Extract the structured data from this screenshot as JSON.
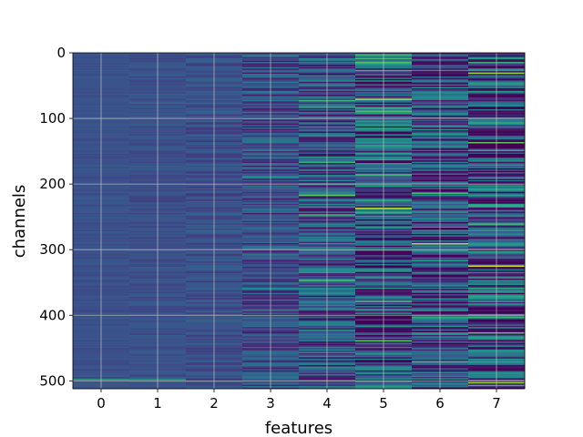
{
  "chart_data": {
    "type": "heatmap",
    "title": "",
    "xlabel": "features",
    "ylabel": "channels",
    "x_categories": [
      0,
      1,
      2,
      3,
      4,
      5,
      6,
      7
    ],
    "x_ticks": [
      "0",
      "1",
      "2",
      "3",
      "4",
      "5",
      "6",
      "7"
    ],
    "y_ticks": [
      "0",
      "100",
      "200",
      "300",
      "400",
      "500"
    ],
    "y_tick_values": [
      0,
      100,
      200,
      300,
      400,
      500
    ],
    "ylim": [
      512,
      0
    ],
    "xlim": [
      -0.5,
      7.5
    ],
    "n_channels": 512,
    "grid": true,
    "colormap": "viridis",
    "background_color": "#3b528b",
    "grid_color": "#c8c8c8",
    "column_variance": [
      0.04,
      0.06,
      0.1,
      0.22,
      0.34,
      0.46,
      0.42,
      0.48
    ],
    "highlights": [
      {
        "feature": 0,
        "channel": 497,
        "level": 0.6
      },
      {
        "feature": 1,
        "channel": 497,
        "level": 0.55
      },
      {
        "feature": 4,
        "channel": 82,
        "level": 0.65
      },
      {
        "feature": 4,
        "channel": 216,
        "level": 0.75
      },
      {
        "feature": 4,
        "channel": 266,
        "level": 0.02
      },
      {
        "feature": 4,
        "channel": 346,
        "level": 0.7
      },
      {
        "feature": 5,
        "channel": 8,
        "level": 0.7
      },
      {
        "feature": 5,
        "channel": 110,
        "level": 0.6
      },
      {
        "feature": 5,
        "channel": 185,
        "level": 0.7
      },
      {
        "feature": 5,
        "channel": 236,
        "level": 0.92
      },
      {
        "feature": 5,
        "channel": 262,
        "level": 0.0
      },
      {
        "feature": 5,
        "channel": 378,
        "level": 0.7
      },
      {
        "feature": 5,
        "channel": 438,
        "level": 0.75
      },
      {
        "feature": 6,
        "channel": 213,
        "level": 0.7
      },
      {
        "feature": 6,
        "channel": 265,
        "level": 1.0
      },
      {
        "feature": 6,
        "channel": 265.8,
        "level": 0.0
      },
      {
        "feature": 6,
        "channel": 470,
        "level": 0.7
      },
      {
        "feature": 7,
        "channel": 136,
        "level": 0.75
      },
      {
        "feature": 7,
        "channel": 260,
        "level": 0.7
      },
      {
        "feature": 7,
        "channel": 300,
        "level": 0.02
      },
      {
        "feature": 7,
        "channel": 324,
        "level": 0.98
      },
      {
        "feature": 7,
        "channel": 402,
        "level": 0.65
      }
    ]
  }
}
